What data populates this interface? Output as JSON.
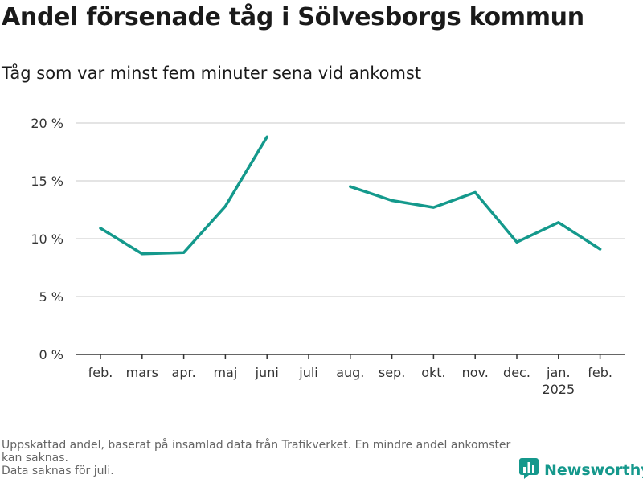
{
  "header": {
    "title": "Andel försenade tåg i Sölvesborgs kommun",
    "subtitle": "Tåg som var minst fem minuter sena vid ankomst"
  },
  "chart_data": {
    "type": "line",
    "title": "Andel försenade tåg i Sölvesborgs kommun",
    "subtitle": "Tåg som var minst fem minuter sena vid ankomst",
    "xlabel": "",
    "ylabel": "",
    "categories": [
      "feb.",
      "mars",
      "apr.",
      "maj",
      "juni",
      "juli",
      "aug.",
      "sep.",
      "okt.",
      "nov.",
      "dec.",
      "jan.",
      "feb."
    ],
    "year_label": {
      "category_index": 11,
      "text": "2025"
    },
    "y_ticks": [
      0,
      5,
      10,
      15,
      20
    ],
    "y_tick_labels": [
      "0 %",
      "5 %",
      "10 %",
      "15 %",
      "20 %"
    ],
    "ylim": [
      0,
      20
    ],
    "grid": true,
    "series": [
      {
        "name": "Andel försenade tåg",
        "color": "#14998c",
        "values": [
          10.9,
          8.7,
          8.8,
          12.8,
          18.8,
          null,
          14.5,
          13.3,
          12.7,
          14.0,
          9.7,
          11.4,
          9.1
        ]
      }
    ]
  },
  "footnote": {
    "lines": [
      "Uppskattad andel, baserat på insamlad data från Trafikverket. En mindre andel ankomster kan saknas.",
      "Data saknas för juli."
    ]
  },
  "brand": {
    "name": "Newsworthy",
    "logo_icon": "newsworthy-logo-icon",
    "color": "#15988c"
  }
}
